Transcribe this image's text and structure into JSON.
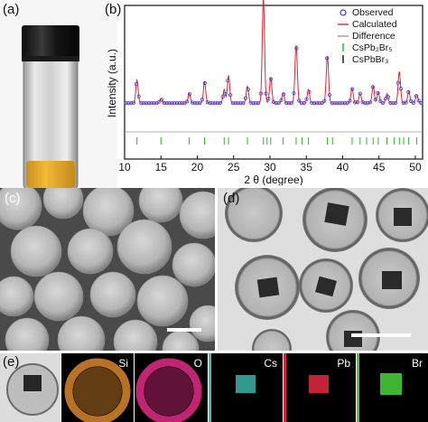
{
  "figure": {
    "panel_a": {
      "label": "(a)"
    },
    "panel_b": {
      "label": "(b)"
    },
    "panel_c": {
      "label": "(c)"
    },
    "panel_d": {
      "label": "(d)"
    },
    "panel_e": {
      "label": "(e)"
    },
    "maps": [
      {
        "name": "Si",
        "color": "#d9862a"
      },
      {
        "name": "O",
        "color": "#d6287c"
      },
      {
        "name": "Cs",
        "color": "#3dbfb2"
      },
      {
        "name": "Pb",
        "color": "#d8273c"
      },
      {
        "name": "Br",
        "color": "#46c93a"
      }
    ]
  },
  "chart_data": {
    "type": "line",
    "title": "",
    "xlabel": "2 θ (degree)",
    "ylabel": "Intensity (a.u.)",
    "xlim": [
      10,
      51
    ],
    "x_ticks": [
      "10",
      "15",
      "20",
      "25",
      "30",
      "35",
      "40",
      "45",
      "50"
    ],
    "legend": {
      "position": "top-right",
      "entries": [
        {
          "label": "Observed",
          "marker": "circle",
          "color": "#3b3bd1"
        },
        {
          "label": "Calculated",
          "marker": "line",
          "color": "#d62a3a"
        },
        {
          "label": "Difference",
          "marker": "line",
          "color": "#9a9a9a"
        },
        {
          "label": "CsPb₂Br₅",
          "marker": "tick",
          "color": "#2bb52b"
        },
        {
          "label": "CsPbBr₃",
          "marker": "tick",
          "color": "#111111"
        }
      ]
    },
    "peaks": [
      {
        "x": 11.7,
        "height": 0.22
      },
      {
        "x": 15.0,
        "height": 0.04
      },
      {
        "x": 18.9,
        "height": 0.09
      },
      {
        "x": 21.0,
        "height": 0.2
      },
      {
        "x": 23.7,
        "height": 0.13
      },
      {
        "x": 24.3,
        "height": 0.26
      },
      {
        "x": 26.9,
        "height": 0.16
      },
      {
        "x": 29.1,
        "height": 1.0
      },
      {
        "x": 30.1,
        "height": 0.24
      },
      {
        "x": 31.8,
        "height": 0.1
      },
      {
        "x": 33.6,
        "height": 0.55
      },
      {
        "x": 35.3,
        "height": 0.13
      },
      {
        "x": 37.9,
        "height": 0.45
      },
      {
        "x": 41.3,
        "height": 0.14
      },
      {
        "x": 42.4,
        "height": 0.09
      },
      {
        "x": 44.2,
        "height": 0.16
      },
      {
        "x": 44.9,
        "height": 0.1
      },
      {
        "x": 46.1,
        "height": 0.09
      },
      {
        "x": 47.8,
        "height": 0.3
      },
      {
        "x": 49.1,
        "height": 0.11
      },
      {
        "x": 50.2,
        "height": 0.08
      }
    ],
    "baseline": 0.12,
    "reflections_CsPb2Br5": [
      11.7,
      15.0,
      18.9,
      21.0,
      23.7,
      24.3,
      26.9,
      29.1,
      29.6,
      30.1,
      31.8,
      33.6,
      34.4,
      35.3,
      37.9,
      38.6,
      41.3,
      42.4,
      43.3,
      44.2,
      44.9,
      46.1,
      47.1,
      47.8,
      48.4,
      49.1,
      50.2
    ]
  }
}
